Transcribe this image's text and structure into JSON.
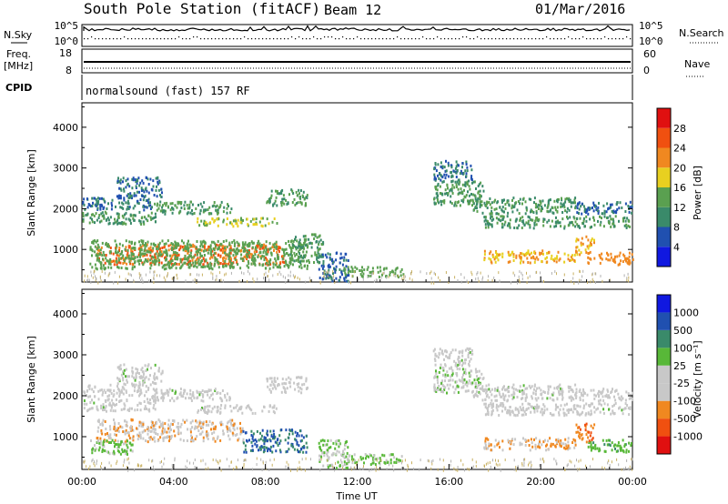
{
  "header": {
    "station": "South Pole Station (fitACF)",
    "beam": "Beam 12",
    "date": "01/Mar/2016"
  },
  "top_panels": {
    "nsky_label": "N.Sky",
    "nsky_tick_top": "10^5",
    "nsky_tick_bottom": "10^0",
    "nsearch_label": "N.Search",
    "freq_label": "Freq.",
    "freq_unit": "[MHz]",
    "freq_tick_top": "18",
    "freq_tick_bottom": "8",
    "nave_label": "Nave",
    "nave_tick_top": "60",
    "nave_tick_bottom": "0",
    "cpid_label": "CPID",
    "cpid_text": "normalsound (fast) 157 RF"
  },
  "colors": {
    "power_scale": [
      "#1018e0",
      "#2050b0",
      "#3a8a6a",
      "#5aa050",
      "#e8d020",
      "#f08820",
      "#f05010",
      "#e01010"
    ],
    "velocity_scale": [
      "#e01010",
      "#f05010",
      "#f08820",
      "#c8c8c8",
      "#c8c8c8",
      "#58b838",
      "#3a8a6a",
      "#2050b0",
      "#1018e0"
    ]
  },
  "chart_data": [
    {
      "type": "heatmap",
      "title": "",
      "xlabel": "",
      "ylabel": "Slant Range [km]",
      "x_ticks": [
        "00:00",
        "04:00",
        "08:00",
        "12:00",
        "16:00",
        "20:00",
        "00:00"
      ],
      "y_ticks": [
        1000,
        2000,
        3000,
        4000
      ],
      "ylim": [
        200,
        4600
      ],
      "xlim_hours": [
        0,
        24
      ],
      "colorbar_label": "Power [dB]",
      "colorbar_ticks": [
        "4",
        "8",
        "12",
        "16",
        "20",
        "24",
        "28"
      ],
      "colorbar_range": [
        0,
        32
      ],
      "echo_bands": [
        {
          "t0": 0.0,
          "t1": 3.2,
          "r0": 1650,
          "r1": 1950,
          "value": 12
        },
        {
          "t0": 0.0,
          "t1": 3.0,
          "r0": 2000,
          "r1": 2300,
          "value": 8
        },
        {
          "t0": 1.5,
          "t1": 3.5,
          "r0": 2300,
          "r1": 2800,
          "value": 8
        },
        {
          "t0": 3.0,
          "t1": 6.5,
          "r0": 1900,
          "r1": 2200,
          "value": 12
        },
        {
          "t0": 5.0,
          "t1": 8.5,
          "r0": 1600,
          "r1": 1800,
          "value": 16
        },
        {
          "t0": 8.0,
          "t1": 9.8,
          "r0": 2100,
          "r1": 2500,
          "value": 12
        },
        {
          "t0": 0.6,
          "t1": 8.8,
          "r0": 650,
          "r1": 1150,
          "value": 24
        },
        {
          "t0": 0.3,
          "t1": 9.8,
          "r0": 550,
          "r1": 1250,
          "value": 14
        },
        {
          "t0": 9.0,
          "t1": 10.5,
          "r0": 700,
          "r1": 1400,
          "value": 12
        },
        {
          "t0": 10.3,
          "t1": 11.6,
          "r0": 250,
          "r1": 950,
          "value": 8
        },
        {
          "t0": 11.4,
          "t1": 14.0,
          "r0": 350,
          "r1": 600,
          "value": 14
        },
        {
          "t0": 15.3,
          "t1": 17.5,
          "r0": 2100,
          "r1": 2700,
          "value": 12
        },
        {
          "t0": 15.3,
          "t1": 17.0,
          "r0": 2700,
          "r1": 3200,
          "value": 8
        },
        {
          "t0": 17.0,
          "t1": 21.5,
          "r0": 1900,
          "r1": 2300,
          "value": 12
        },
        {
          "t0": 17.5,
          "t1": 24.0,
          "r0": 1550,
          "r1": 1850,
          "value": 12
        },
        {
          "t0": 21.5,
          "t1": 24.0,
          "r0": 1900,
          "r1": 2200,
          "value": 8
        },
        {
          "t0": 17.5,
          "t1": 21.5,
          "r0": 700,
          "r1": 1000,
          "value": 20
        },
        {
          "t0": 22.0,
          "t1": 24.0,
          "r0": 650,
          "r1": 950,
          "value": 22
        },
        {
          "t0": 21.5,
          "t1": 22.3,
          "r0": 900,
          "r1": 1350,
          "value": 20
        }
      ]
    },
    {
      "type": "heatmap",
      "title": "",
      "xlabel": "Time UT",
      "ylabel": "Slant Range [km]",
      "x_ticks": [
        "00:00",
        "04:00",
        "08:00",
        "12:00",
        "16:00",
        "20:00",
        "00:00"
      ],
      "y_ticks": [
        1000,
        2000,
        3000,
        4000
      ],
      "ylim": [
        200,
        4600
      ],
      "xlim_hours": [
        0,
        24
      ],
      "colorbar_label": "Velocity [m s⁻¹]",
      "colorbar_ticks": [
        "-1000",
        "-500",
        "-100",
        "-25",
        "25",
        "100",
        "500",
        "1000"
      ],
      "colorbar_range": [
        -1200,
        1200
      ],
      "echo_bands": [
        {
          "t0": 0.0,
          "t1": 3.2,
          "r0": 1650,
          "r1": 1950,
          "value": 0
        },
        {
          "t0": 0.0,
          "t1": 3.0,
          "r0": 2000,
          "r1": 2300,
          "value": -50
        },
        {
          "t0": 1.5,
          "t1": 3.5,
          "r0": 2300,
          "r1": 2800,
          "value": 10
        },
        {
          "t0": 3.0,
          "t1": 6.5,
          "r0": 1900,
          "r1": 2200,
          "value": 0
        },
        {
          "t0": 5.0,
          "t1": 8.5,
          "r0": 1600,
          "r1": 1800,
          "value": 0
        },
        {
          "t0": 8.0,
          "t1": 9.8,
          "r0": 2100,
          "r1": 2500,
          "value": -40
        },
        {
          "t0": 0.6,
          "t1": 7.0,
          "r0": 900,
          "r1": 1450,
          "value": -350
        },
        {
          "t0": 0.3,
          "t1": 2.2,
          "r0": 600,
          "r1": 950,
          "value": 200
        },
        {
          "t0": 7.0,
          "t1": 9.8,
          "r0": 650,
          "r1": 1200,
          "value": 700
        },
        {
          "t0": 10.3,
          "t1": 11.6,
          "r0": 250,
          "r1": 950,
          "value": 150
        },
        {
          "t0": 11.4,
          "t1": 14.0,
          "r0": 350,
          "r1": 600,
          "value": 200
        },
        {
          "t0": 15.3,
          "t1": 17.5,
          "r0": 2100,
          "r1": 2700,
          "value": 50
        },
        {
          "t0": 15.3,
          "t1": 17.0,
          "r0": 2700,
          "r1": 3200,
          "value": 20
        },
        {
          "t0": 17.0,
          "t1": 21.5,
          "r0": 1900,
          "r1": 2300,
          "value": 0
        },
        {
          "t0": 17.5,
          "t1": 24.0,
          "r0": 1550,
          "r1": 1850,
          "value": 0
        },
        {
          "t0": 21.5,
          "t1": 24.0,
          "r0": 1900,
          "r1": 2200,
          "value": -30
        },
        {
          "t0": 17.5,
          "t1": 21.5,
          "r0": 700,
          "r1": 1000,
          "value": -400
        },
        {
          "t0": 22.0,
          "t1": 24.0,
          "r0": 650,
          "r1": 950,
          "value": 300
        },
        {
          "t0": 21.5,
          "t1": 22.3,
          "r0": 900,
          "r1": 1350,
          "value": -600
        }
      ]
    }
  ]
}
